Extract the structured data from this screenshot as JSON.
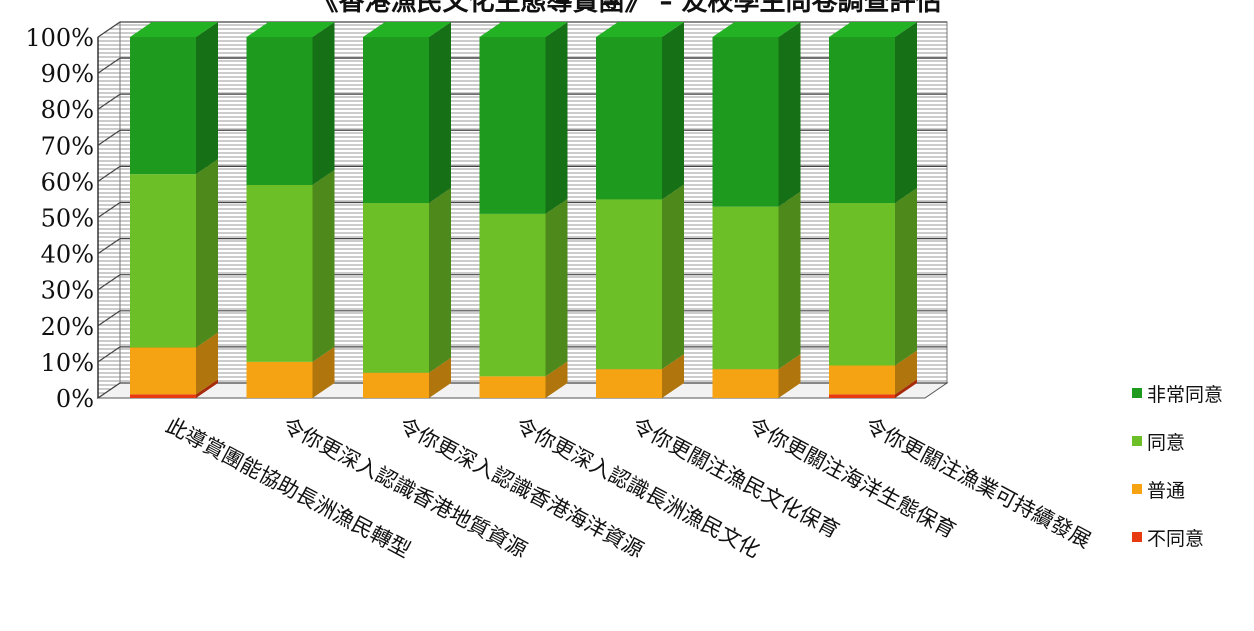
{
  "chart_data": {
    "type": "bar",
    "stacked": true,
    "percent_stacked": true,
    "three_d": true,
    "title": "《香港漁民文化生態導賞團》 – 友校學生問卷調查評估",
    "categories": [
      "此導賞團能協助長洲漁民轉型",
      "令你更深入認識香港地質資源",
      "令你更深入認識香港海洋資源",
      "令你更深入認識長洲漁民文化",
      "令你更關注漁民文化保育",
      "令你更關注海洋生態保育",
      "令你更關注漁業可持續發展"
    ],
    "series": [
      {
        "name": "不同意",
        "color": "#e83a10",
        "values": [
          1,
          0,
          0,
          0,
          0,
          0,
          1
        ]
      },
      {
        "name": "普通",
        "color": "#f5a312",
        "values": [
          13,
          10,
          7,
          6,
          8,
          8,
          8
        ]
      },
      {
        "name": "同意",
        "color": "#6cbf26",
        "values": [
          48,
          49,
          47,
          45,
          47,
          45,
          45
        ]
      },
      {
        "name": "非常同意",
        "color": "#1e9b1f",
        "values": [
          38,
          41,
          46,
          49,
          45,
          47,
          46
        ]
      }
    ],
    "y_ticks": [
      "0%",
      "10%",
      "20%",
      "30%",
      "40%",
      "50%",
      "60%",
      "70%",
      "80%",
      "90%",
      "100%"
    ],
    "ylim": [
      0,
      100
    ],
    "grid": true,
    "legend_position": "right"
  },
  "legend": [
    {
      "label": "非常同意",
      "color": "#1e9b1f"
    },
    {
      "label": "同意",
      "color": "#6cbf26"
    },
    {
      "label": "普通",
      "color": "#f5a312"
    },
    {
      "label": "不同意",
      "color": "#e83a10"
    }
  ]
}
